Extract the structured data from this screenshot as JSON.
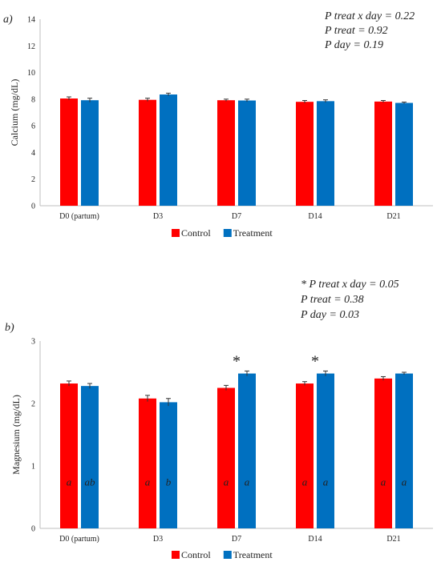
{
  "chart_data": [
    {
      "type": "bar",
      "panel_label": "a)",
      "categories": [
        "D0 (partum)",
        "D3",
        "D7",
        "D14",
        "D21"
      ],
      "series": [
        {
          "name": "Control",
          "color": "#ff0000",
          "values": [
            8.05,
            7.95,
            7.92,
            7.8,
            7.82
          ],
          "errors": [
            0.12,
            0.12,
            0.08,
            0.1,
            0.08
          ]
        },
        {
          "name": "Treatment",
          "color": "#0070c0",
          "values": [
            7.92,
            8.35,
            7.9,
            7.85,
            7.72
          ],
          "errors": [
            0.15,
            0.1,
            0.1,
            0.1,
            0.06
          ]
        }
      ],
      "ylabel": "Calcium (mg/dL)",
      "xlabel": "",
      "ylim": [
        0,
        14
      ],
      "yticks": [
        "0",
        "2",
        "4",
        "6",
        "8",
        "10",
        "12",
        "14"
      ],
      "grid": false,
      "legend": "bottom",
      "annotations": [
        "P treat x day = 0.22",
        "P treat = 0.92",
        "P day = 0.19"
      ]
    },
    {
      "type": "bar",
      "panel_label": "b)",
      "categories": [
        "D0 (partum)",
        "D3",
        "D7",
        "D14",
        "D21"
      ],
      "series": [
        {
          "name": "Control",
          "color": "#ff0000",
          "values": [
            2.32,
            2.08,
            2.25,
            2.32,
            2.4
          ],
          "errors": [
            0.04,
            0.05,
            0.04,
            0.03,
            0.03
          ],
          "letters": [
            "a",
            "a",
            "a",
            "a",
            "a"
          ]
        },
        {
          "name": "Treatment",
          "color": "#0070c0",
          "values": [
            2.28,
            2.02,
            2.48,
            2.48,
            2.48
          ],
          "errors": [
            0.04,
            0.06,
            0.04,
            0.04,
            0.02
          ],
          "letters": [
            "ab",
            "b",
            "a",
            "a",
            "a"
          ]
        }
      ],
      "ylabel": "Magnesium (mg/dL)",
      "xlabel": "",
      "ylim": [
        0,
        3
      ],
      "yticks": [
        "0",
        "1",
        "2",
        "3"
      ],
      "grid": false,
      "legend": "bottom",
      "significance": [
        {
          "category": "D7",
          "marker": "*"
        },
        {
          "category": "D14",
          "marker": "*"
        }
      ],
      "annotations": [
        "* P treat x day = 0.05",
        "P treat = 0.38",
        "P day = 0.03"
      ]
    }
  ]
}
